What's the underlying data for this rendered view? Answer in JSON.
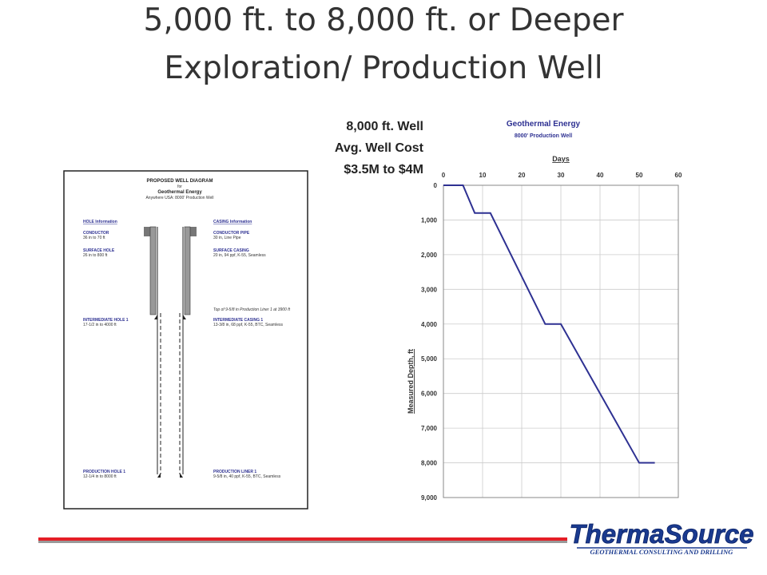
{
  "slide": {
    "title_line1": "5,000 ft. to 8,000 ft. or Deeper",
    "title_line2": "Exploration/ Production Well",
    "well_label": "8,000 ft. Well",
    "cost_label": "Avg. Well Cost",
    "cost_range": "$3.5M to $4M"
  },
  "diagram": {
    "title": "PROPOSED WELL DIAGRAM",
    "for": "for",
    "project": "Geothermal Energy",
    "location": "Anywhere USA:  8000' Production Well",
    "hole_header": "HOLE Information",
    "casing_header": "CASING Information",
    "holes": [
      {
        "name": "CONDUCTOR",
        "spec": "36      in to 70 ft"
      },
      {
        "name": "SURFACE HOLE",
        "spec": "26      in to 800 ft"
      },
      {
        "name": "INTERMEDIATE HOLE 1",
        "spec": "17-1/2 in to 4000 ft"
      },
      {
        "name": "PRODUCTION HOLE 1",
        "spec": "12-1/4 in to 8000 ft"
      }
    ],
    "casings": [
      {
        "name": "CONDUCTOR PIPE",
        "spec": "30      in,  Line Pipe"
      },
      {
        "name": "SURFACE CASING",
        "spec": "20      in, 94 ppf, K-55, Seamless"
      },
      {
        "name": "INTERMEDIATE CASING 1",
        "spec": "13-3/8 in, 68 ppf, K-55, BTC, Seamless"
      },
      {
        "name": "PRODUCTION LINER 1",
        "spec": "9-5/8 in, 40 ppf, K-55, BTC, Seamless"
      }
    ],
    "liner_note": "Top of 9-5/8 in Production Liner 1 at 3900 ft"
  },
  "logo": {
    "name": "ThermaSource",
    "tagline": "GEOTHERMAL CONSULTING AND DRILLING"
  },
  "chart_data": {
    "type": "line",
    "title": "Geothermal Energy",
    "subtitle": "8000' Production Well",
    "x_label": "Days",
    "y_label": "Measured Depth, ft",
    "x": [
      0,
      5,
      8,
      12,
      26,
      30,
      50,
      54
    ],
    "values": [
      0,
      0,
      800,
      800,
      4000,
      4000,
      8000,
      8000
    ],
    "color": "#2e3192",
    "xlim": [
      0,
      60
    ],
    "xticks": [
      0,
      10,
      20,
      30,
      40,
      50,
      60
    ],
    "ylim": [
      0,
      9000
    ],
    "y_inverted": true,
    "yticks": [
      0,
      {
        "value": 1000,
        "label": "1,000"
      },
      {
        "value": 2000,
        "label": "2,000"
      },
      {
        "value": 3000,
        "label": "3,000"
      },
      {
        "value": 4000,
        "label": "4,000"
      },
      {
        "value": 5000,
        "label": "5,000"
      },
      {
        "value": 6000,
        "label": "6,000"
      },
      {
        "value": 7000,
        "label": "7,000"
      },
      {
        "value": 8000,
        "label": "8,000"
      },
      {
        "value": 9000,
        "label": "9,000"
      }
    ],
    "grid": true
  }
}
